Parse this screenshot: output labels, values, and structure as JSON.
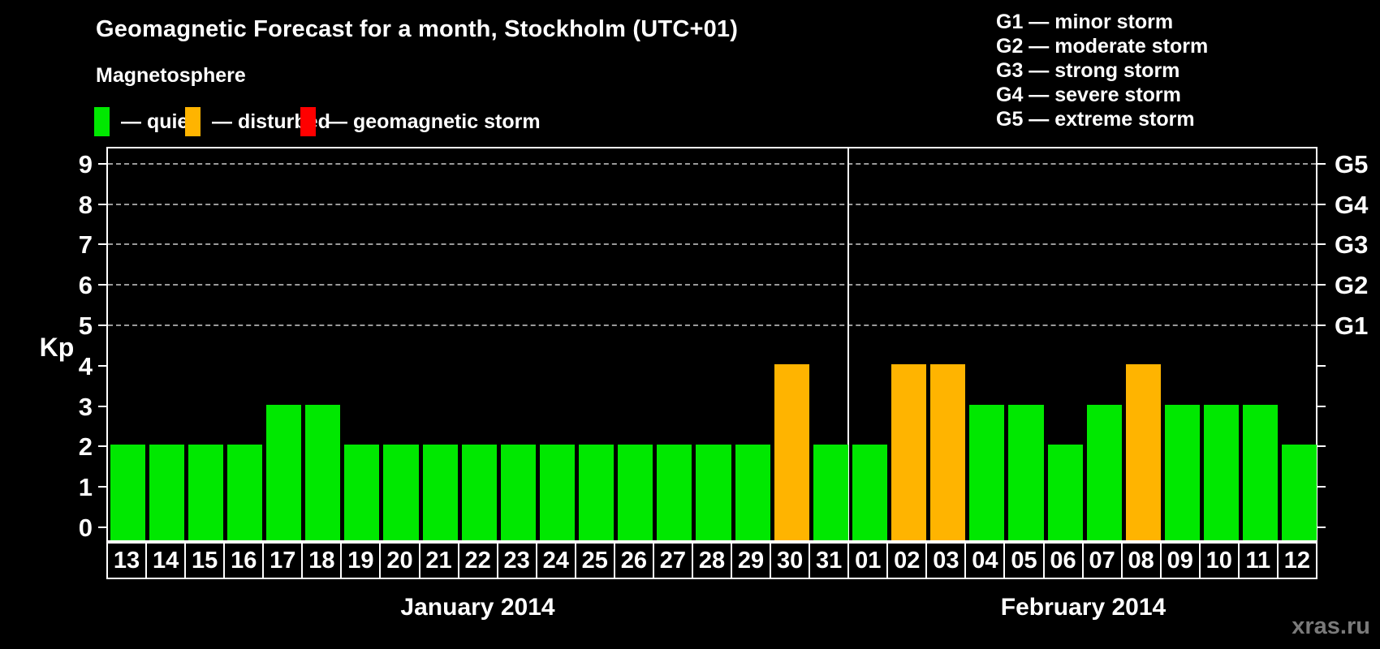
{
  "title": "Geomagnetic Forecast for a month, Stockholm (UTC+01)",
  "subtitle": "Magnetosphere",
  "legend": {
    "items": [
      {
        "key": "quiet",
        "label": "— quiet",
        "color": "#00e800"
      },
      {
        "key": "disturbed",
        "label": "— disturbed",
        "color": "#ffb400"
      },
      {
        "key": "storm",
        "label": "— geomagnetic storm",
        "color": "#ff0000"
      }
    ]
  },
  "storm_scale_legend": [
    "G1 — minor storm",
    "G2 — moderate storm",
    "G3 — strong storm",
    "G4 — severe storm",
    "G5 — extreme storm"
  ],
  "watermark": "xras.ru",
  "chart_data": {
    "type": "bar",
    "title": "Geomagnetic Forecast for a month, Stockholm (UTC+01)",
    "ylabel": "Kp",
    "ylim": [
      0,
      9
    ],
    "y_ticks": [
      0,
      1,
      2,
      3,
      4,
      5,
      6,
      7,
      8,
      9
    ],
    "gridlines_at": [
      5,
      6,
      7,
      8,
      9
    ],
    "right_axis_labels": [
      {
        "kp": 5,
        "label": "G1"
      },
      {
        "kp": 6,
        "label": "G2"
      },
      {
        "kp": 7,
        "label": "G3"
      },
      {
        "kp": 8,
        "label": "G4"
      },
      {
        "kp": 9,
        "label": "G5"
      }
    ],
    "categories": [
      "13",
      "14",
      "15",
      "16",
      "17",
      "18",
      "19",
      "20",
      "21",
      "22",
      "23",
      "24",
      "25",
      "26",
      "27",
      "28",
      "29",
      "30",
      "31",
      "01",
      "02",
      "03",
      "04",
      "05",
      "06",
      "07",
      "08",
      "09",
      "10",
      "11",
      "12"
    ],
    "values": [
      2,
      2,
      2,
      2,
      3,
      3,
      2,
      2,
      2,
      2,
      2,
      2,
      2,
      2,
      2,
      2,
      2,
      4,
      2,
      2,
      4,
      4,
      3,
      3,
      2,
      3,
      4,
      3,
      3,
      3,
      2
    ],
    "status": [
      "quiet",
      "quiet",
      "quiet",
      "quiet",
      "quiet",
      "quiet",
      "quiet",
      "quiet",
      "quiet",
      "quiet",
      "quiet",
      "quiet",
      "quiet",
      "quiet",
      "quiet",
      "quiet",
      "quiet",
      "disturbed",
      "quiet",
      "quiet",
      "disturbed",
      "disturbed",
      "quiet",
      "quiet",
      "quiet",
      "quiet",
      "disturbed",
      "quiet",
      "quiet",
      "quiet",
      "quiet"
    ],
    "month_boundary_index": 19,
    "months": [
      {
        "label": "January 2014",
        "days": 19
      },
      {
        "label": "February 2014",
        "days": 12
      }
    ]
  }
}
